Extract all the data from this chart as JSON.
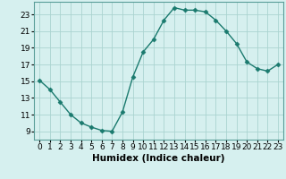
{
  "x": [
    0,
    1,
    2,
    3,
    4,
    5,
    6,
    7,
    8,
    9,
    10,
    11,
    12,
    13,
    14,
    15,
    16,
    17,
    18,
    19,
    20,
    21,
    22,
    23
  ],
  "y": [
    15.1,
    14.0,
    12.5,
    11.0,
    10.0,
    9.5,
    9.1,
    9.0,
    11.3,
    15.5,
    18.5,
    20.0,
    22.3,
    23.8,
    23.5,
    23.5,
    23.3,
    22.3,
    21.0,
    19.5,
    17.3,
    16.5,
    16.2,
    17.0
  ],
  "line_color": "#1a7a6e",
  "marker": "D",
  "marker_size": 2.5,
  "line_width": 1.0,
  "bg_color": "#d6f0ef",
  "grid_color": "#aad4d0",
  "xlabel": "Humidex (Indice chaleur)",
  "xlabel_fontsize": 7.5,
  "tick_fontsize": 6.5,
  "ylim": [
    8.0,
    24.5
  ],
  "xlim": [
    -0.5,
    23.5
  ],
  "yticks": [
    9,
    11,
    13,
    15,
    17,
    19,
    21,
    23
  ],
  "xticks": [
    0,
    1,
    2,
    3,
    4,
    5,
    6,
    7,
    8,
    9,
    10,
    11,
    12,
    13,
    14,
    15,
    16,
    17,
    18,
    19,
    20,
    21,
    22,
    23
  ]
}
